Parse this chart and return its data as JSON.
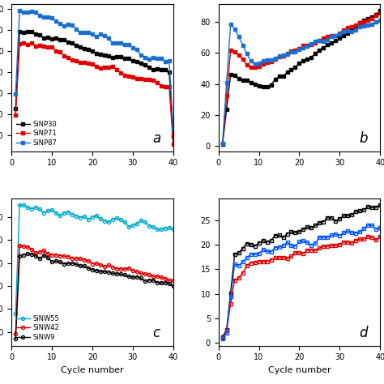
{
  "panel_a": {
    "label": "a",
    "legend": [
      "SiNP30",
      "SiNP71",
      "SiNP87"
    ],
    "colors": [
      "#000000",
      "#e00000",
      "#1a6fcc"
    ],
    "xlim": [
      0,
      40
    ],
    "x_ticks": [
      0,
      10,
      20,
      30,
      40
    ],
    "ylim": [
      500,
      2500
    ],
    "ylabel_visible": false
  },
  "panel_b": {
    "label": "b",
    "colors": [
      "#000000",
      "#e00000",
      "#1a6fcc"
    ],
    "xlim": [
      0,
      40
    ],
    "x_ticks": [
      0,
      10,
      20,
      30,
      40
    ],
    "ylabel_visible": false
  },
  "panel_c": {
    "label": "c",
    "legend": [
      "SiNW9",
      "SiNW42",
      "SiNW55"
    ],
    "colors": [
      "#000000",
      "#e00000",
      "#00aacc"
    ],
    "xlim": [
      0,
      40
    ],
    "x_ticks": [
      0,
      10,
      20,
      30,
      40
    ],
    "xlabel": "Cycle number",
    "ylabel_visible": false
  },
  "panel_d": {
    "label": "d",
    "colors": [
      "#000000",
      "#e00000",
      "#0055ff"
    ],
    "xlim": [
      0,
      40
    ],
    "x_ticks": [
      0,
      10,
      20,
      30,
      40
    ],
    "xlabel": "Cycle number",
    "ylabel_visible": false
  },
  "background_color": "#ffffff",
  "tick_fontsize": 7,
  "label_fontsize": 8,
  "marker_size": 3,
  "line_width": 1.0
}
